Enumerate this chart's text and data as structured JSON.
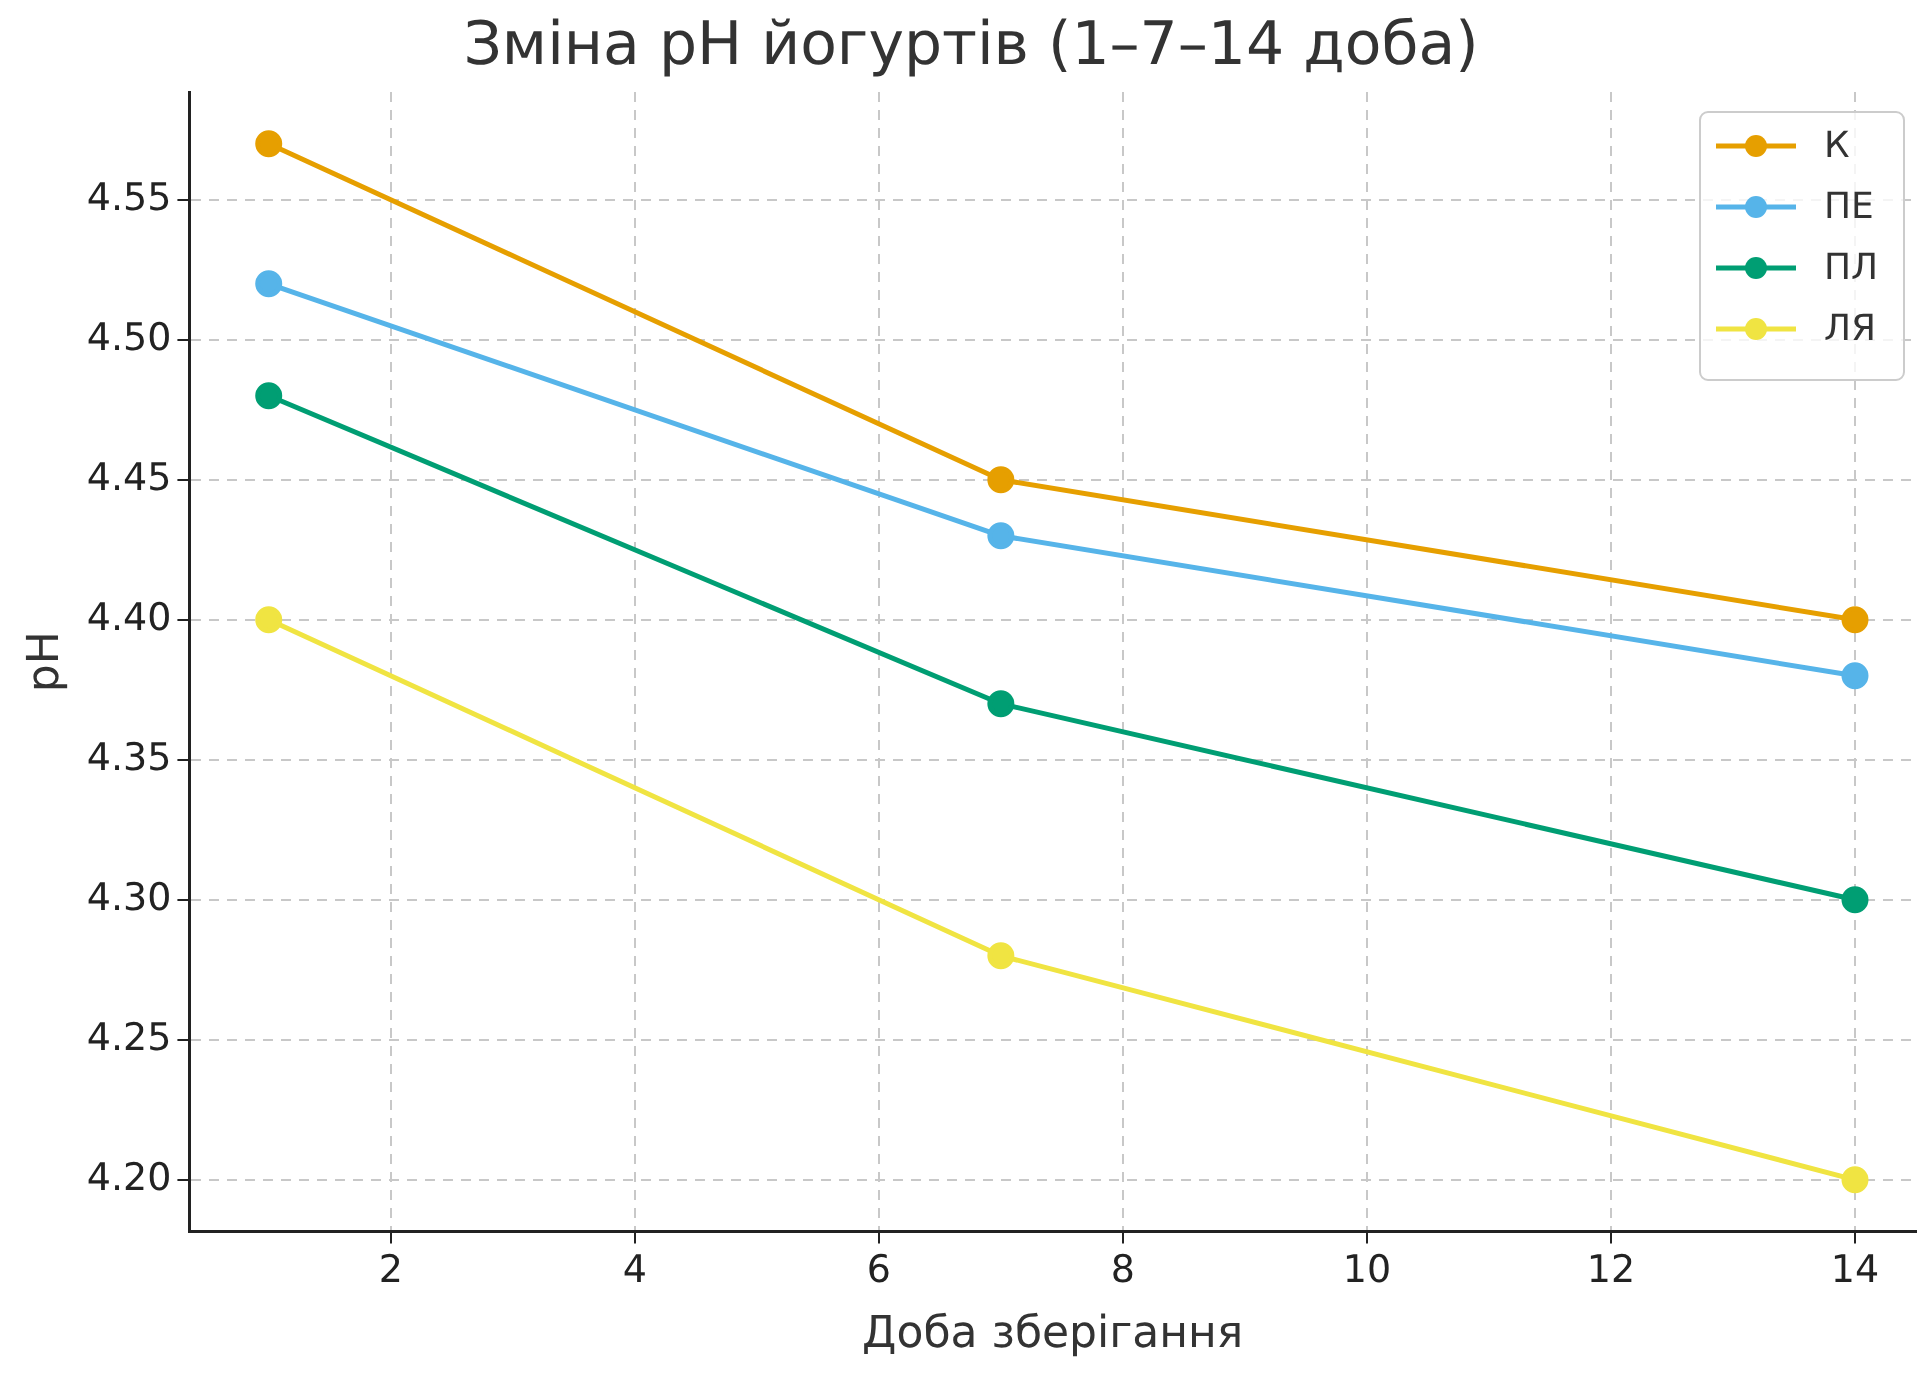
{
  "chart_data": {
    "type": "line",
    "title": "Зміна pH йогуртів (1–7–14 доба)",
    "xlabel": "Доба зберігання",
    "ylabel": "pH",
    "x": [
      1,
      7,
      14
    ],
    "series": [
      {
        "name": "К",
        "color": "#e69f00",
        "values": [
          4.57,
          4.45,
          4.4
        ]
      },
      {
        "name": "ПЕ",
        "color": "#56b4e9",
        "values": [
          4.52,
          4.43,
          4.38
        ]
      },
      {
        "name": "ПЛ",
        "color": "#009e73",
        "values": [
          4.48,
          4.37,
          4.3
        ]
      },
      {
        "name": "ЛЯ",
        "color": "#f0e442",
        "values": [
          4.4,
          4.28,
          4.2
        ]
      }
    ],
    "xlim": [
      0.35,
      14.5
    ],
    "xticks": [
      2,
      4,
      6,
      8,
      10,
      12,
      14
    ],
    "ylim": [
      4.1815,
      4.5885
    ],
    "yticks": [
      {
        "value": 4.2,
        "label": "4.20"
      },
      {
        "value": 4.25,
        "label": "4.25"
      },
      {
        "value": 4.3,
        "label": "4.30"
      },
      {
        "value": 4.35,
        "label": "4.35"
      },
      {
        "value": 4.4,
        "label": "4.40"
      },
      {
        "value": 4.45,
        "label": "4.45"
      },
      {
        "value": 4.5,
        "label": "4.50"
      },
      {
        "value": 4.55,
        "label": "4.55"
      }
    ],
    "grid": true,
    "legend": "top right",
    "marker": "circle",
    "line_style": "solid"
  }
}
